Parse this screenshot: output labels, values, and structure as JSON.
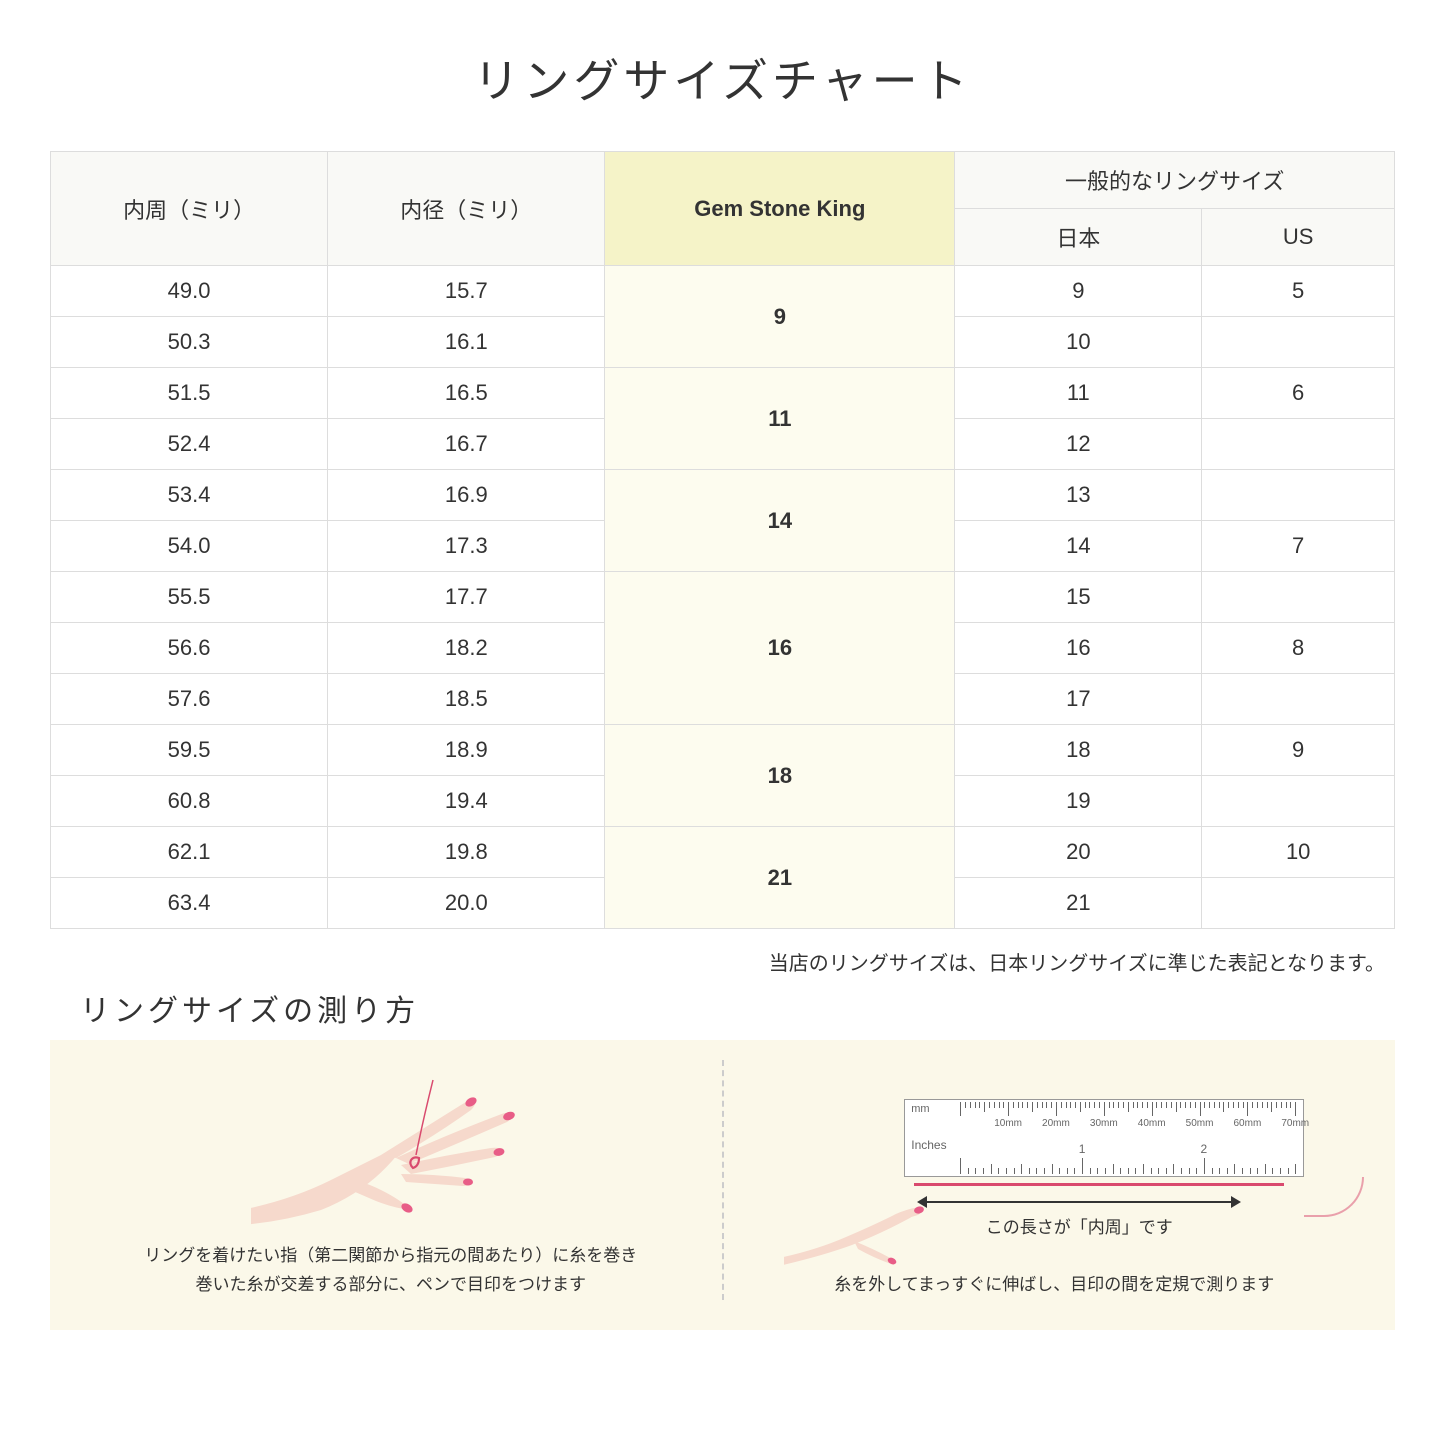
{
  "title": "リングサイズチャート",
  "headers": {
    "circumference": "内周（ミリ）",
    "diameter": "内径（ミリ）",
    "gsk": "Gem Stone King",
    "common_size": "一般的なリングサイズ",
    "japan": "日本",
    "us": "US"
  },
  "groups": [
    {
      "gsk": "9",
      "rows": [
        {
          "c": "49.0",
          "d": "15.7",
          "jp": "9",
          "us": "5"
        },
        {
          "c": "50.3",
          "d": "16.1",
          "jp": "10",
          "us": ""
        }
      ]
    },
    {
      "gsk": "11",
      "rows": [
        {
          "c": "51.5",
          "d": "16.5",
          "jp": "11",
          "us": "6"
        },
        {
          "c": "52.4",
          "d": "16.7",
          "jp": "12",
          "us": ""
        }
      ]
    },
    {
      "gsk": "14",
      "rows": [
        {
          "c": "53.4",
          "d": "16.9",
          "jp": "13",
          "us": ""
        },
        {
          "c": "54.0",
          "d": "17.3",
          "jp": "14",
          "us": "7"
        }
      ]
    },
    {
      "gsk": "16",
      "rows": [
        {
          "c": "55.5",
          "d": "17.7",
          "jp": "15",
          "us": ""
        },
        {
          "c": "56.6",
          "d": "18.2",
          "jp": "16",
          "us": "8"
        },
        {
          "c": "57.6",
          "d": "18.5",
          "jp": "17",
          "us": ""
        }
      ]
    },
    {
      "gsk": "18",
      "rows": [
        {
          "c": "59.5",
          "d": "18.9",
          "jp": "18",
          "us": "9"
        },
        {
          "c": "60.8",
          "d": "19.4",
          "jp": "19",
          "us": ""
        }
      ]
    },
    {
      "gsk": "21",
      "rows": [
        {
          "c": "62.1",
          "d": "19.8",
          "jp": "20",
          "us": "10"
        },
        {
          "c": "63.4",
          "d": "20.0",
          "jp": "21",
          "us": ""
        }
      ]
    }
  ],
  "table_note": "当店のリングサイズは、日本リングサイズに準じた表記となります。",
  "measure_title": "リングサイズの測り方",
  "instruction_left": "リングを着けたい指（第二関節から指元の間あたり）に糸を巻き\n巻いた糸が交差する部分に、ペンで目印をつけます",
  "instruction_right": "糸を外してまっすぐに伸ばし、目印の間を定規で測ります",
  "ruler": {
    "mm_label": "mm",
    "inches_label": "Inches",
    "mm_ticks": [
      "10mm",
      "20mm",
      "30mm",
      "40mm",
      "50mm",
      "60mm",
      "70mm"
    ],
    "inch_ticks": [
      "1",
      "2"
    ]
  },
  "arrow_label": "この長さが「内周」です",
  "colors": {
    "header_bg": "#f9f9f6",
    "highlight_header_bg": "#f5f3c8",
    "highlight_cell_bg": "#fdfcef",
    "border": "#dddddd",
    "instruction_bg": "#fbf8e9",
    "skin": "#f6d9cc",
    "nail": "#e85d87",
    "thread": "#d94a6e"
  }
}
